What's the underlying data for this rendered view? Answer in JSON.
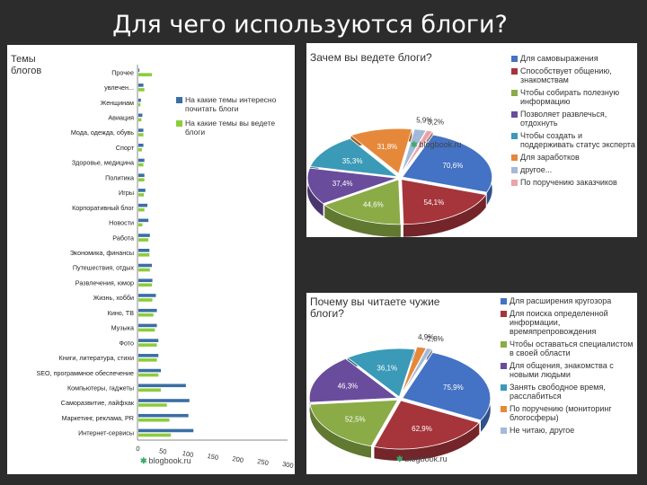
{
  "slide": {
    "title": "Для чего используются блоги?"
  },
  "colors": {
    "interest": "#3a6ea5",
    "write": "#8ccc3c"
  },
  "watermark": "blogbook.ru",
  "chart_data": [
    {
      "type": "bar",
      "orientation": "horizontal",
      "title": "Темы блогов",
      "categories": [
        "Прочее",
        "увлечен...",
        "Женщинам",
        "Авиация",
        "Мода, одежда, обувь",
        "Спорт",
        "Здоровье, медицина",
        "Политика",
        "Игры",
        "Корпоративный блог",
        "Новости",
        "Работа",
        "Экономика, финансы",
        "Путешествия, отдых",
        "Развлечения, юмор",
        "Жизнь, хобби",
        "Кино, ТВ",
        "Музыка",
        "Фото",
        "Книги, литература, стихи",
        "SEO, программное обеспечение",
        "Компьютеры, гаджеты",
        "Саморазвитие, лайфхак",
        "Маркетинг, реклама, PR",
        "Интернет-сервисы"
      ],
      "series": [
        {
          "name": "На какие темы интересно почитать блоги",
          "values": [
            2,
            10,
            5,
            8,
            10,
            10,
            12,
            12,
            14,
            18,
            20,
            23,
            22,
            27,
            28,
            35,
            37,
            37,
            40,
            40,
            45,
            95,
            102,
            100,
            110
          ]
        },
        {
          "name": "На какие темы вы ведете блоги",
          "values": [
            27,
            12,
            4,
            6,
            10,
            7,
            10,
            12,
            11,
            12,
            8,
            20,
            22,
            23,
            27,
            28,
            30,
            33,
            37,
            37,
            40,
            45,
            57,
            62,
            65
          ]
        }
      ],
      "ticks": [
        "0",
        "50",
        "100",
        "150",
        "200",
        "250",
        "300"
      ],
      "xlim": [
        0,
        300
      ]
    },
    {
      "type": "pie",
      "title": "Зачем вы ведете блоги?",
      "slices": [
        {
          "label": "Для самовыражения",
          "value": 70.6,
          "display": "70,6%",
          "color": "#4472c4"
        },
        {
          "label": "Способствует общению, знакомствам",
          "value": 54.1,
          "display": "54,1%",
          "color": "#a5353a"
        },
        {
          "label": "Чтобы собирать полезную информацию",
          "value": 44.6,
          "display": "44,6%",
          "color": "#8aab46"
        },
        {
          "label": "Позволяет развлечься, отдохнуть",
          "value": 37.4,
          "display": "37,4%",
          "color": "#6a4c9c"
        },
        {
          "label": "Чтобы создать и поддерживать статус эксперта",
          "value": 35.3,
          "display": "35,3%",
          "color": "#3a9ab8"
        },
        {
          "label": "Для заработков",
          "value": 31.8,
          "display": "31,8%",
          "color": "#e6883a"
        },
        {
          "label": "другое...",
          "value": 5.9,
          "display": "5,9%",
          "color": "#a3b9d9"
        },
        {
          "label": "По поручению заказчиков",
          "value": 3.2,
          "display": "3,2%",
          "color": "#e8a4a6"
        }
      ]
    },
    {
      "type": "pie",
      "title": "Почему вы читаете чужие блоги?",
      "slices": [
        {
          "label": "Для расширения кругозора",
          "value": 75.9,
          "display": "75,9%",
          "color": "#4472c4"
        },
        {
          "label": "Для поиска определенной информации, времяпрепровождения",
          "value": 62.9,
          "display": "62,9%",
          "color": "#a5353a"
        },
        {
          "label": "Чтобы оставаться специалистом в своей области",
          "value": 52.5,
          "display": "52,5%",
          "color": "#8aab46"
        },
        {
          "label": "Для общения, знакомства с новыми людьми",
          "value": 46.3,
          "display": "46,3%",
          "color": "#6a4c9c"
        },
        {
          "label": "Занять свободное время, расслабиться",
          "value": 36.1,
          "display": "36,1%",
          "color": "#3a9ab8"
        },
        {
          "label": "По поручению (мониторинг блогосферы)",
          "value": 4.9,
          "display": "4,9%",
          "color": "#e6883a"
        },
        {
          "label": "Не читаю, другое",
          "value": 2.8,
          "display": "2,8%",
          "color": "#a3b9d9"
        }
      ]
    }
  ]
}
